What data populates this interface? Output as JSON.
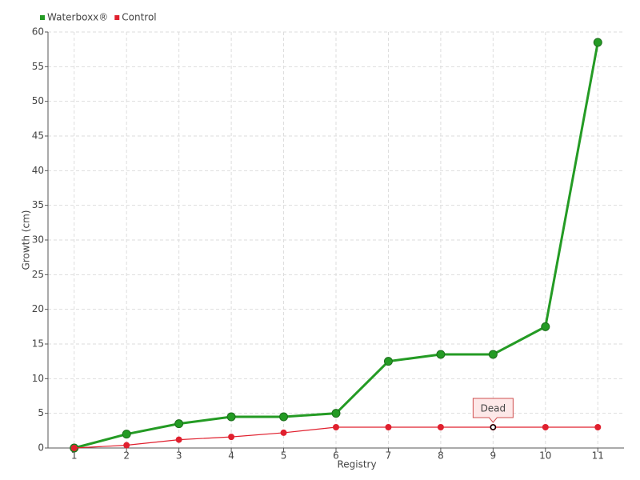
{
  "chart_data": {
    "type": "line",
    "x_label": "Registry",
    "y_label": "Growth (cm)",
    "categories": [
      "1",
      "2",
      "3",
      "4",
      "5",
      "6",
      "7",
      "8",
      "9",
      "10",
      "11"
    ],
    "series": [
      {
        "name": "Waterboxx®",
        "color": "#249b24",
        "values": [
          0,
          2,
          3.5,
          4.5,
          4.5,
          5,
          12.5,
          13.5,
          13.5,
          17.5,
          58.5
        ]
      },
      {
        "name": "Control",
        "color": "#e0202e",
        "values": [
          0,
          0.4,
          1.2,
          1.6,
          2.2,
          3,
          3,
          3,
          3,
          3,
          3
        ]
      }
    ],
    "annotation": {
      "text": "Dead",
      "category": "9"
    },
    "ylim": [
      0,
      60
    ],
    "yticks": [
      0,
      5,
      10,
      15,
      20,
      25,
      30,
      35,
      40,
      45,
      50,
      55,
      60
    ],
    "grid": true
  }
}
